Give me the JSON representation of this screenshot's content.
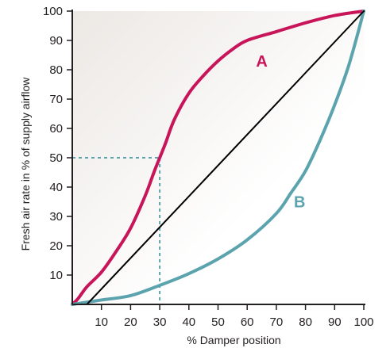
{
  "chart_data": {
    "type": "line",
    "title": "",
    "xlabel": "% Damper position",
    "ylabel": "Fresh air rate in % of supply airflow",
    "xlim": [
      0,
      100
    ],
    "ylim": [
      0,
      100
    ],
    "x_ticks": [
      "10",
      "20",
      "30",
      "40",
      "50",
      "60",
      "70",
      "80",
      "90",
      "100"
    ],
    "y_ticks": [
      "10",
      "20",
      "30",
      "40",
      "50",
      "60",
      "70",
      "80",
      "90",
      "100"
    ],
    "grid": false,
    "series": [
      {
        "name": "A",
        "color": "#c8155a",
        "x": [
          0,
          2,
          5,
          10,
          15,
          20,
          25,
          28,
          30,
          32,
          35,
          40,
          45,
          50,
          55,
          60,
          70,
          80,
          90,
          100
        ],
        "y": [
          0,
          2,
          6,
          11,
          18,
          26,
          37,
          45,
          50,
          55,
          63,
          72,
          78,
          83,
          87,
          90,
          93,
          96,
          98.5,
          100
        ]
      },
      {
        "name": "B",
        "color": "#5ba3ad",
        "x": [
          0,
          10,
          20,
          30,
          40,
          50,
          60,
          70,
          75,
          80,
          85,
          90,
          95,
          100
        ],
        "y": [
          0,
          1.5,
          3,
          6.5,
          10.5,
          15.5,
          22,
          31,
          38,
          45.5,
          56,
          68,
          82,
          100
        ]
      },
      {
        "name": "",
        "color": "#000000",
        "x": [
          5,
          100
        ],
        "y": [
          0,
          100
        ]
      }
    ],
    "reference_lines": {
      "color": "#5ba3ad",
      "point": {
        "x": 30,
        "y": 50
      }
    },
    "axis_color": "#231f20",
    "background_gradient": [
      "#ece8e4",
      "#ffffff"
    ]
  }
}
